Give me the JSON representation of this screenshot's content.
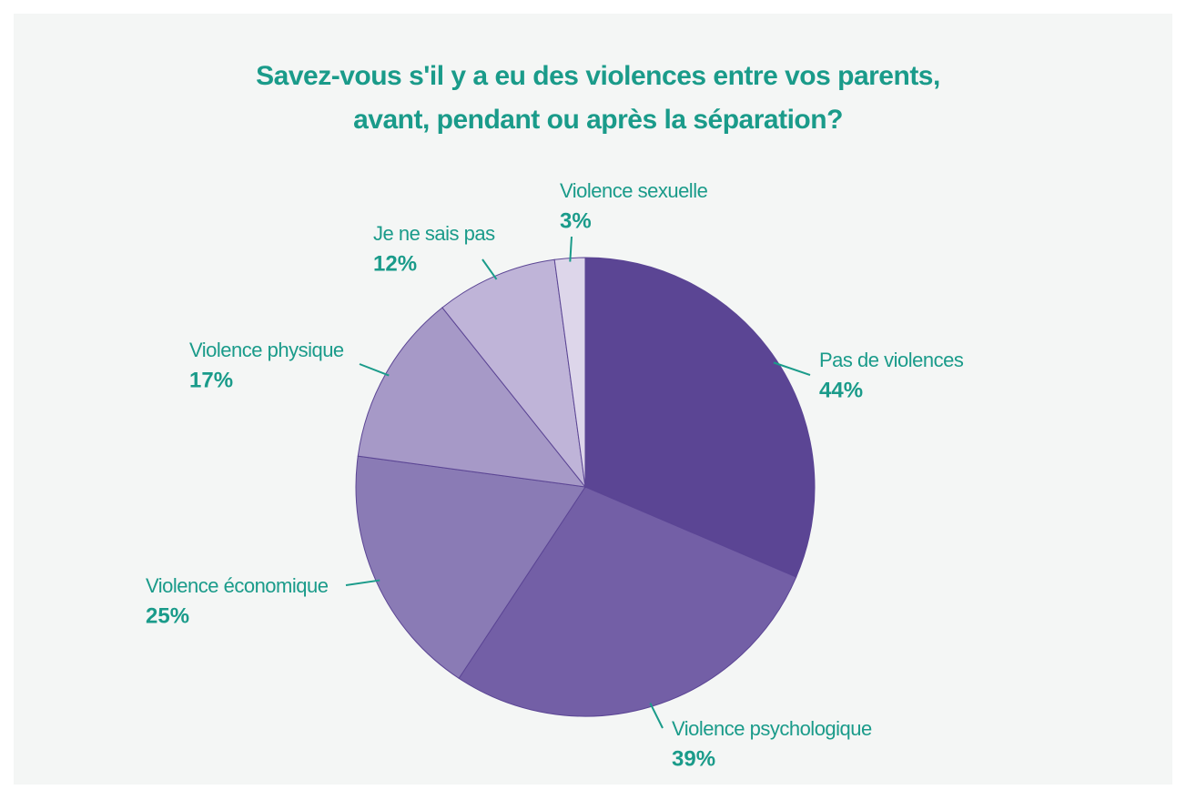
{
  "chart_data": {
    "type": "pie",
    "title": [
      "Savez-vous s'il y a eu des violences entre vos parents,",
      "avant, pendant ou après la séparation?"
    ],
    "categories": [
      "Pas de violences",
      "Violence psychologique",
      "Violence économique",
      "Violence physique",
      "Je ne sais pas",
      "Violence sexuelle"
    ],
    "values": [
      44,
      39,
      25,
      17,
      12,
      3
    ],
    "value_labels": [
      "44%",
      "39%",
      "25%",
      "17%",
      "12%",
      "3%"
    ],
    "colors": [
      "#5b4594",
      "#735fa6",
      "#8a7bb5",
      "#a699c7",
      "#bfb4d8",
      "#ddd6ea"
    ]
  }
}
